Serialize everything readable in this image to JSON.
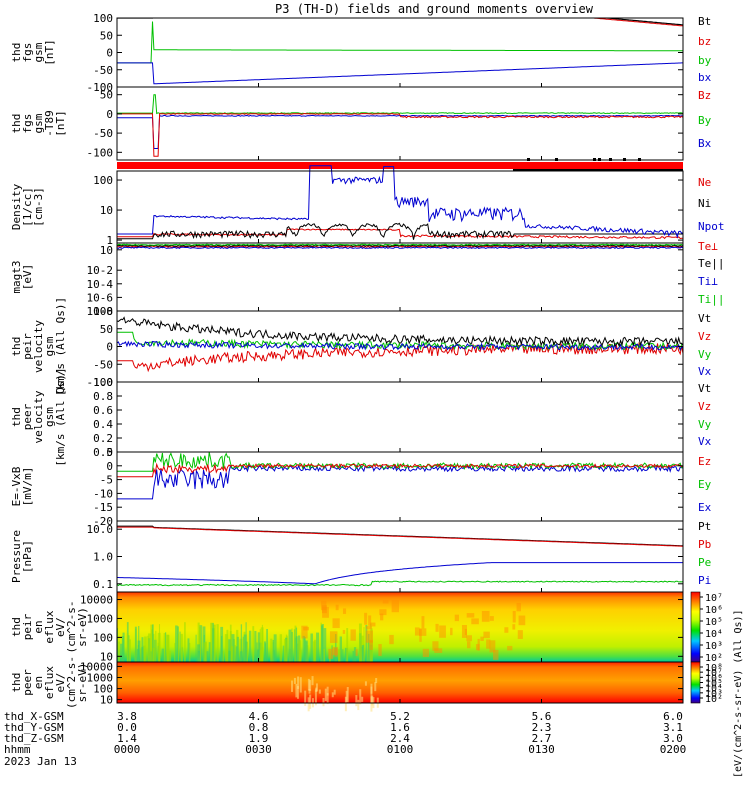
{
  "title": "P3 (TH-D) fields and ground moments overview",
  "colors": {
    "black": "#000000",
    "red": "#e00000",
    "green": "#00c000",
    "blue": "#0000d0",
    "bar_red": "#ff0000"
  },
  "chart_data": [
    {
      "type": "line",
      "name": "fgs_gsm",
      "ylabel": [
        "thd",
        "fgs",
        "gsm",
        "[nT]"
      ],
      "ylim": [
        -100,
        100
      ],
      "yticks": [
        -100,
        -50,
        0,
        50,
        100
      ],
      "legend": [
        "Bt",
        "bz",
        "by",
        "bx"
      ],
      "series_colors": [
        "black",
        "red",
        "green",
        "blue"
      ]
    },
    {
      "type": "line",
      "name": "fgs_gsm_t89",
      "ylabel": [
        "thd",
        "fgs",
        "gsm",
        "-T89",
        "[nT]"
      ],
      "ylim": [
        -120,
        70
      ],
      "yticks": [
        -100,
        -50,
        0,
        50
      ],
      "legend": [
        "Bz",
        "By",
        "Bx"
      ],
      "series_colors": [
        "red",
        "green",
        "blue"
      ]
    },
    {
      "type": "line",
      "name": "density",
      "log": true,
      "ylabel": [
        "Density",
        "[1/cc]",
        "[cm-3]"
      ],
      "ylim": [
        0.8,
        200
      ],
      "yticks": [
        "1",
        "10",
        "100"
      ],
      "legend": [
        "Ne",
        "Ni",
        "Npot"
      ],
      "series_colors": [
        "red",
        "black",
        "blue"
      ]
    },
    {
      "type": "line",
      "name": "magt3",
      "log": true,
      "ylabel": [
        "magt3",
        "[eV]"
      ],
      "ylim": [
        1e-08,
        100
      ],
      "yticks": [
        "10",
        "10-2",
        "10-4",
        "10-6",
        "10-8"
      ],
      "legend": [
        "Te⊥",
        "Te||",
        "Ti⊥",
        "Ti||"
      ],
      "series_colors": [
        "red",
        "black",
        "blue",
        "green"
      ]
    },
    {
      "type": "line",
      "name": "peir_velocity",
      "ylabel": [
        "thd",
        "peir",
        "velocity",
        "gsm",
        "[km/s (All Qs)]"
      ],
      "ylim": [
        -100,
        100
      ],
      "yticks": [
        -100,
        -50,
        0,
        50,
        100
      ],
      "legend": [
        "Vt",
        "Vz",
        "Vy",
        "Vx"
      ],
      "series_colors": [
        "black",
        "red",
        "green",
        "blue"
      ]
    },
    {
      "type": "line",
      "name": "peer_velocity",
      "ylabel": [
        "thd",
        "peer",
        "velocity",
        "gsm",
        "[km/s (All Qs)]"
      ],
      "ylim": [
        0,
        1
      ],
      "yticks": [
        "0.0",
        "0.2",
        "0.4",
        "0.6",
        "0.8",
        "1.0"
      ],
      "legend": [
        "Vt",
        "Vz",
        "Vy",
        "Vx"
      ],
      "series_colors": [
        "black",
        "red",
        "green",
        "blue"
      ]
    },
    {
      "type": "line",
      "name": "e_field",
      "ylabel": [
        "E=-VxB",
        "[mV/m]"
      ],
      "ylim": [
        -20,
        5
      ],
      "yticks": [
        5,
        0,
        -5,
        -10,
        -15,
        -20
      ],
      "legend": [
        "Ez",
        "Ey",
        "Ex"
      ],
      "series_colors": [
        "red",
        "green",
        "blue"
      ]
    },
    {
      "type": "line",
      "name": "pressure",
      "log": true,
      "ylabel": [
        "Pressure",
        "[nPa]"
      ],
      "ylim": [
        0.05,
        20
      ],
      "yticks": [
        "10.0",
        "1.0",
        "0.1"
      ],
      "legend": [
        "Pt",
        "Pb",
        "Pe",
        "Pi"
      ],
      "series_colors": [
        "black",
        "red",
        "green",
        "blue"
      ]
    },
    {
      "type": "heatmap",
      "name": "peir_en_eflux",
      "log": true,
      "ylabel": [
        "thd",
        "peir",
        "en",
        "eflux",
        "eV/",
        "(cm^2-s-",
        "sr-eV)"
      ],
      "ylim": [
        5,
        25000
      ],
      "yticks": [
        "10000",
        "1000",
        "100",
        "10"
      ],
      "colorbar_ticks": [
        "10⁷",
        "10⁶",
        "10⁵",
        "10⁴",
        "10³",
        "10²"
      ],
      "colorbar_label": "[eV/(cm^2-s-sr-eV) (All Qs)]"
    },
    {
      "type": "heatmap",
      "name": "peer_en_eflux",
      "log": true,
      "ylabel": [
        "thd",
        "peer",
        "en",
        "eflux",
        "eV/",
        "(cm^2-s-",
        "sr-eV)"
      ],
      "ylim": [
        5,
        25000
      ],
      "yticks": [
        "10000",
        "1000",
        "100",
        "10"
      ],
      "colorbar_ticks": [
        "10⁸",
        "10⁷",
        "10⁶",
        "10⁵",
        "10⁴",
        "10³",
        "10²"
      ],
      "colorbar_label": "[eV/(cm^2-s-sr-eV) (All Qs)]"
    }
  ],
  "x_axis": {
    "row_labels": [
      "thd_X-GSM",
      "thd_Y-GSM",
      "thd_Z-GSM",
      "hhmm",
      "2023 Jan 13"
    ],
    "ticks": [
      {
        "x": "3.8",
        "y": "0.0",
        "z": "1.4",
        "hhmm": "0000"
      },
      {
        "x": "4.6",
        "y": "0.8",
        "z": "1.9",
        "hhmm": "0030"
      },
      {
        "x": "5.2",
        "y": "1.6",
        "z": "2.4",
        "hhmm": "0100"
      },
      {
        "x": "5.6",
        "y": "2.3",
        "z": "2.7",
        "hhmm": "0130"
      },
      {
        "x": "6.0",
        "y": "3.1",
        "z": "3.0",
        "hhmm": "0200"
      }
    ]
  }
}
